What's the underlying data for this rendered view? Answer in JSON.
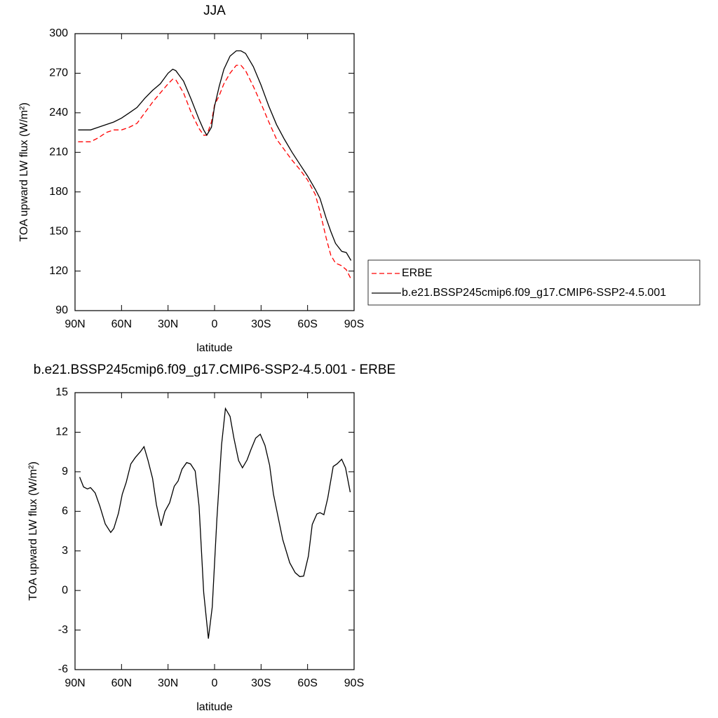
{
  "chart_data": [
    {
      "type": "line",
      "title": "JJA",
      "x_label": "latitude",
      "y_label": "TOA upward LW flux (W/m²)",
      "xlim": [
        90,
        -90
      ],
      "xticks": [
        {
          "value": 90,
          "label": "90N"
        },
        {
          "value": 60,
          "label": "60N"
        },
        {
          "value": 30,
          "label": "30N"
        },
        0,
        {
          "value": -30,
          "label": "30S"
        },
        {
          "value": -60,
          "label": "60S"
        },
        {
          "value": -90,
          "label": "90S"
        }
      ],
      "ylim": [
        90,
        300
      ],
      "yticks": [
        90,
        120,
        150,
        180,
        210,
        240,
        270,
        300
      ],
      "legend": "right",
      "x": [
        88,
        80,
        75,
        70,
        65,
        60,
        55,
        50,
        45,
        40,
        35,
        30,
        27,
        25,
        20,
        15,
        10,
        7,
        5,
        2,
        0,
        -3,
        -6,
        -10,
        -14,
        -17,
        -20,
        -25,
        -30,
        -35,
        -40,
        -45,
        -50,
        -55,
        -60,
        -65,
        -68,
        -72,
        -75,
        -78,
        -82,
        -85,
        -88
      ],
      "series": [
        {
          "name": "ERBE",
          "color": "#ff0000",
          "dashed": true,
          "values": [
            218,
            218,
            221,
            225,
            227,
            227,
            229,
            232,
            240,
            248,
            255,
            262,
            265.5,
            265,
            255,
            240,
            228,
            223,
            223,
            233,
            246,
            253,
            262,
            270,
            276,
            276,
            272,
            260,
            247,
            233,
            220,
            212,
            204,
            197,
            189,
            178,
            165,
            145,
            132,
            126,
            124,
            121,
            114
          ]
        },
        {
          "name": "b.e21.BSSP245cmip6.f09_g17.CMIP6-SSP2-4.5.001",
          "color": "#000000",
          "dashed": false,
          "values": [
            227,
            227,
            229,
            231,
            233,
            236,
            240,
            244,
            251,
            257,
            262,
            270,
            273,
            272,
            264,
            250,
            235,
            227,
            223,
            229,
            245,
            260,
            273,
            283,
            287,
            287,
            285,
            275,
            261,
            245,
            231,
            220,
            210,
            201,
            192,
            182,
            175,
            160,
            150,
            141,
            135,
            134,
            128
          ]
        }
      ]
    },
    {
      "type": "line",
      "title": "b.e21.BSSP245cmip6.f09_g17.CMIP6-SSP2-4.5.001 - ERBE",
      "x_label": "latitude",
      "y_label": "TOA upward LW flux (W/m²)",
      "xlim": [
        90,
        -90
      ],
      "xticks": [
        {
          "value": 90,
          "label": "90N"
        },
        {
          "value": 60,
          "label": "60N"
        },
        {
          "value": 30,
          "label": "30N"
        },
        0,
        {
          "value": -30,
          "label": "30S"
        },
        {
          "value": -60,
          "label": "60S"
        },
        {
          "value": -90,
          "label": "90S"
        }
      ],
      "ylim": [
        -6,
        15
      ],
      "yticks": [
        -6,
        -3,
        0,
        3,
        6,
        9,
        12,
        15
      ],
      "x": [
        87,
        84.5,
        82,
        80,
        77,
        74,
        70.5,
        67,
        65,
        62,
        59.5,
        57,
        54,
        51,
        48,
        45.5,
        43,
        40,
        37.5,
        34.5,
        32,
        29,
        26,
        23.5,
        21,
        18,
        15.5,
        12.5,
        10,
        7,
        4,
        1.5,
        -1.5,
        -4.5,
        -7,
        -10,
        -12.5,
        -15.5,
        -18,
        -21,
        -23.5,
        -26.5,
        -29.5,
        -32.5,
        -35.5,
        -38,
        -41,
        -44,
        -48.5,
        -52,
        -55,
        -57.5,
        -60.5,
        -63,
        -66,
        -68,
        -70.5,
        -73,
        -76.5,
        -79,
        -82,
        -84.5,
        -87.5
      ],
      "series": [
        {
          "name": "b.e21.BSSP245cmip6.f09_g17.CMIP6-SSP2-4.5.001 - ERBE",
          "color": "#000000",
          "dashed": false,
          "values": [
            8.6,
            7.85,
            7.7,
            7.8,
            7.4,
            6.4,
            5.05,
            4.4,
            4.7,
            5.85,
            7.3,
            8.2,
            9.6,
            10.1,
            10.5,
            10.9,
            9.9,
            8.5,
            6.5,
            4.9,
            6.0,
            6.65,
            7.9,
            8.3,
            9.2,
            9.7,
            9.6,
            9.05,
            6.4,
            -0.15,
            -3.65,
            -1.25,
            5.4,
            11.05,
            13.8,
            13.2,
            11.55,
            9.85,
            9.3,
            9.9,
            10.7,
            11.55,
            11.85,
            11.0,
            9.5,
            7.3,
            5.55,
            3.85,
            2.1,
            1.35,
            1.05,
            1.1,
            2.6,
            5.0,
            5.8,
            5.9,
            5.75,
            7.0,
            9.4,
            9.6,
            9.95,
            9.3,
            7.45
          ]
        }
      ]
    }
  ]
}
